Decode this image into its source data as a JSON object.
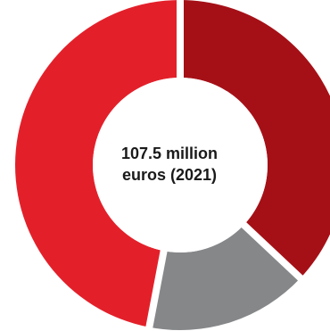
{
  "chart_data": {
    "type": "pie",
    "style": "donut",
    "center_text": {
      "line1": "107.5 million",
      "line2": "euros (2021)"
    },
    "slices": [
      {
        "value": 37,
        "color": "#a51017"
      },
      {
        "value": 16,
        "color": "#868789"
      },
      {
        "value": 47,
        "color": "#e3202a"
      }
    ],
    "start_angle_deg": 0,
    "direction": "clockwise"
  }
}
